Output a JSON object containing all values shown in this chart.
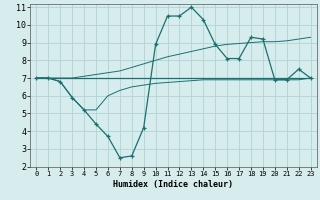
{
  "xlabel": "Humidex (Indice chaleur)",
  "xlim": [
    -0.5,
    23.5
  ],
  "ylim": [
    2,
    11.2
  ],
  "x_ticks": [
    0,
    1,
    2,
    3,
    4,
    5,
    6,
    7,
    8,
    9,
    10,
    11,
    12,
    13,
    14,
    15,
    16,
    17,
    18,
    19,
    20,
    21,
    22,
    23
  ],
  "y_ticks": [
    2,
    3,
    4,
    5,
    6,
    7,
    8,
    9,
    10,
    11
  ],
  "background_color": "#d7ecec",
  "grid_color": "#afd4d4",
  "line_color": "#1a7070",
  "series": {
    "flat_x": [
      0,
      1,
      2,
      3,
      4,
      5,
      6,
      7,
      8,
      9,
      10,
      11,
      12,
      13,
      14,
      15,
      16,
      17,
      18,
      19,
      20,
      21,
      22,
      23
    ],
    "flat_y": [
      7.0,
      7.0,
      7.0,
      7.0,
      7.0,
      7.0,
      7.0,
      7.0,
      7.0,
      7.0,
      7.0,
      7.0,
      7.0,
      7.0,
      7.0,
      7.0,
      7.0,
      7.0,
      7.0,
      7.0,
      7.0,
      7.0,
      7.0,
      7.0
    ],
    "lower_x": [
      0,
      1,
      2,
      3,
      4,
      5,
      6,
      7,
      8,
      9,
      10,
      11,
      12,
      13,
      14,
      15,
      16,
      17,
      18,
      19,
      20,
      21,
      22,
      23
    ],
    "lower_y": [
      7.0,
      7.0,
      6.8,
      5.9,
      5.2,
      5.2,
      6.0,
      6.3,
      6.5,
      6.6,
      6.7,
      6.75,
      6.8,
      6.85,
      6.9,
      6.9,
      6.9,
      6.9,
      6.9,
      6.9,
      6.9,
      6.9,
      6.9,
      7.0
    ],
    "trend_x": [
      0,
      1,
      2,
      3,
      4,
      5,
      6,
      7,
      8,
      9,
      10,
      11,
      12,
      13,
      14,
      15,
      16,
      17,
      18,
      19,
      20,
      21,
      22,
      23
    ],
    "trend_y": [
      7.0,
      7.0,
      7.0,
      7.0,
      7.1,
      7.2,
      7.3,
      7.4,
      7.6,
      7.8,
      8.0,
      8.2,
      8.35,
      8.5,
      8.65,
      8.8,
      8.9,
      8.95,
      9.0,
      9.05,
      9.05,
      9.1,
      9.2,
      9.3
    ],
    "main_x": [
      0,
      1,
      2,
      3,
      4,
      5,
      6,
      7,
      8,
      9,
      10,
      11,
      12,
      13,
      14,
      15,
      16,
      17,
      18,
      19,
      20,
      21,
      22,
      23
    ],
    "main_y": [
      7.0,
      7.0,
      6.8,
      5.9,
      5.2,
      4.4,
      3.7,
      2.5,
      2.6,
      4.2,
      8.9,
      10.5,
      10.5,
      11.0,
      10.3,
      8.9,
      8.1,
      8.1,
      9.3,
      9.2,
      6.9,
      6.9,
      7.5,
      7.0
    ]
  }
}
